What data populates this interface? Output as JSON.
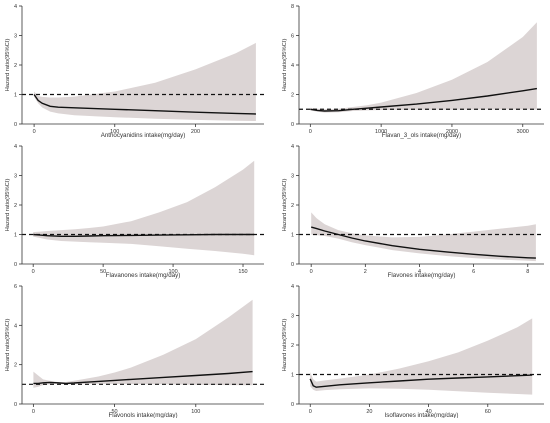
{
  "colors": {
    "ribbon": "#dcd5d5",
    "line": "#111111",
    "reference": "#111111",
    "axis": "#333333"
  },
  "chart_data": [
    {
      "type": "line",
      "xlabel": "Anthocyanidins intake(mg/day)",
      "ylabel": "Hazard ratio(95%CI)",
      "xlim": [
        -15,
        285
      ],
      "ylim": [
        0,
        4
      ],
      "xticks": [
        0,
        100,
        200
      ],
      "yticks": [
        0,
        1,
        2,
        3,
        4
      ],
      "reference_y": 1,
      "x": [
        0,
        5,
        10,
        20,
        30,
        50,
        100,
        150,
        200,
        250,
        275
      ],
      "hr": [
        1.0,
        0.8,
        0.7,
        0.6,
        0.57,
        0.55,
        0.5,
        0.45,
        0.4,
        0.36,
        0.34
      ],
      "lower": [
        0.92,
        0.7,
        0.56,
        0.42,
        0.36,
        0.3,
        0.23,
        0.18,
        0.14,
        0.11,
        0.1
      ],
      "upper": [
        1.1,
        0.95,
        0.92,
        0.9,
        0.9,
        0.93,
        1.1,
        1.4,
        1.85,
        2.4,
        2.75
      ]
    },
    {
      "type": "line",
      "xlabel": "Flavan_3_ols intake(mg/day)",
      "ylabel": "Hazard ratio(95%CI)",
      "xlim": [
        -160,
        3300
      ],
      "ylim": [
        0,
        8
      ],
      "xticks": [
        0,
        1000,
        2000,
        3000
      ],
      "yticks": [
        0,
        2,
        4,
        6,
        8
      ],
      "reference_y": 1,
      "x": [
        0,
        100,
        200,
        400,
        600,
        800,
        1000,
        1500,
        2000,
        2500,
        3000,
        3200
      ],
      "hr": [
        1.0,
        0.92,
        0.88,
        0.9,
        1.0,
        1.07,
        1.15,
        1.35,
        1.6,
        1.9,
        2.25,
        2.4
      ],
      "lower": [
        0.92,
        0.83,
        0.78,
        0.8,
        0.88,
        0.92,
        0.95,
        0.96,
        0.97,
        0.98,
        0.98,
        0.98
      ],
      "upper": [
        1.1,
        1.03,
        1.0,
        1.03,
        1.15,
        1.27,
        1.45,
        2.1,
        3.0,
        4.2,
        5.9,
        6.9
      ]
    },
    {
      "type": "line",
      "xlabel": "Flavanones intake(mg/day)",
      "ylabel": "Hazard ratio(95%CI)",
      "xlim": [
        -8,
        165
      ],
      "ylim": [
        0,
        4
      ],
      "xticks": [
        0,
        50,
        100,
        150
      ],
      "yticks": [
        0,
        1,
        2,
        3,
        4
      ],
      "reference_y": 1,
      "x": [
        0,
        5,
        10,
        20,
        30,
        40,
        50,
        70,
        90,
        110,
        130,
        150,
        158
      ],
      "hr": [
        1.0,
        0.98,
        0.96,
        0.94,
        0.94,
        0.95,
        0.96,
        0.97,
        0.98,
        0.99,
        1.0,
        1.0,
        1.0
      ],
      "lower": [
        0.93,
        0.88,
        0.83,
        0.78,
        0.76,
        0.74,
        0.72,
        0.68,
        0.6,
        0.52,
        0.44,
        0.35,
        0.3
      ],
      "upper": [
        1.08,
        1.1,
        1.12,
        1.15,
        1.18,
        1.22,
        1.27,
        1.45,
        1.75,
        2.1,
        2.6,
        3.2,
        3.5
      ]
    },
    {
      "type": "line",
      "xlabel": "Flavones intake(mg/day)",
      "ylabel": "Hazard ratio(95%CI)",
      "xlim": [
        -0.45,
        8.6
      ],
      "ylim": [
        0,
        4
      ],
      "xticks": [
        0,
        2,
        4,
        6,
        8
      ],
      "yticks": [
        0,
        1,
        2,
        3,
        4
      ],
      "reference_y": 1,
      "x": [
        0,
        0.2,
        0.5,
        1,
        1.5,
        2,
        3,
        4,
        5,
        6,
        7,
        8,
        8.3
      ],
      "hr": [
        1.25,
        1.2,
        1.12,
        1.0,
        0.88,
        0.78,
        0.62,
        0.5,
        0.41,
        0.33,
        0.26,
        0.21,
        0.2
      ],
      "lower": [
        1.0,
        0.98,
        0.95,
        0.86,
        0.74,
        0.64,
        0.47,
        0.36,
        0.27,
        0.2,
        0.15,
        0.11,
        0.1
      ],
      "upper": [
        1.75,
        1.55,
        1.35,
        1.15,
        1.04,
        0.97,
        0.9,
        0.92,
        1.0,
        1.1,
        1.2,
        1.3,
        1.35
      ]
    },
    {
      "type": "line",
      "xlabel": "Flavonols intake(mg/day)",
      "ylabel": "Hazard ratio(95%CI)",
      "xlim": [
        -7,
        142
      ],
      "ylim": [
        0,
        6
      ],
      "xticks": [
        0,
        50,
        100
      ],
      "yticks": [
        0,
        2,
        4,
        6
      ],
      "reference_y": 1,
      "x": [
        0,
        3,
        6,
        10,
        15,
        20,
        25,
        30,
        40,
        50,
        60,
        80,
        100,
        120,
        135
      ],
      "hr": [
        1.05,
        1.05,
        1.08,
        1.1,
        1.08,
        1.05,
        1.07,
        1.1,
        1.15,
        1.2,
        1.25,
        1.35,
        1.45,
        1.55,
        1.65
      ],
      "lower": [
        0.82,
        0.88,
        0.96,
        1.0,
        1.02,
        1.0,
        1.0,
        1.01,
        1.02,
        1.02,
        1.01,
        1.0,
        0.98,
        0.96,
        0.95
      ],
      "upper": [
        1.65,
        1.45,
        1.25,
        1.18,
        1.12,
        1.12,
        1.18,
        1.25,
        1.4,
        1.6,
        1.85,
        2.5,
        3.3,
        4.4,
        5.3
      ]
    },
    {
      "type": "line",
      "xlabel": "Isoflavones intake(mg/day)",
      "ylabel": "Hazard ratio(95%CI)",
      "xlim": [
        -3.8,
        79
      ],
      "ylim": [
        0,
        4
      ],
      "xticks": [
        0,
        20,
        40,
        60
      ],
      "yticks": [
        0,
        1,
        2,
        3,
        4
      ],
      "reference_y": 1,
      "x": [
        0,
        1,
        2,
        5,
        10,
        20,
        30,
        40,
        50,
        60,
        70,
        75
      ],
      "hr": [
        0.85,
        0.62,
        0.57,
        0.6,
        0.65,
        0.72,
        0.78,
        0.84,
        0.88,
        0.92,
        0.96,
        0.98
      ],
      "lower": [
        0.6,
        0.48,
        0.44,
        0.47,
        0.5,
        0.53,
        0.52,
        0.48,
        0.43,
        0.38,
        0.34,
        0.32
      ],
      "upper": [
        1.08,
        0.84,
        0.76,
        0.8,
        0.86,
        1.0,
        1.2,
        1.45,
        1.75,
        2.15,
        2.6,
        2.9
      ]
    }
  ]
}
